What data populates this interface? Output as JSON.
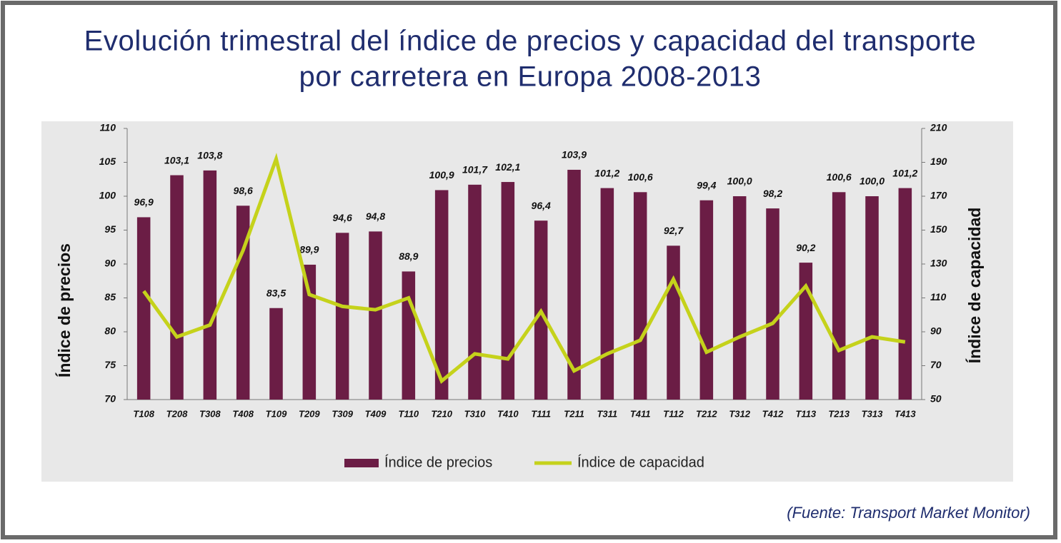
{
  "chart_data": {
    "type": "bar",
    "title": [
      "Evolución trimestral del índice de precios y capacidad del transporte",
      "por carretera en Europa 2008-2013"
    ],
    "source": "(Fuente: Transport Market Monitor)",
    "ylabel": "Índice de precios",
    "y2label": "Índice de capacidad",
    "categories": [
      "T108",
      "T208",
      "T308",
      "T408",
      "T109",
      "T209",
      "T309",
      "T409",
      "T110",
      "T210",
      "T310",
      "T410",
      "T111",
      "T211",
      "T311",
      "T411",
      "T112",
      "T212",
      "T312",
      "T412",
      "T113",
      "T213",
      "T313",
      "T413"
    ],
    "series": [
      {
        "name": "Índice de precios",
        "type": "bar",
        "color": "#6b1d45",
        "values": [
          96.9,
          103.1,
          103.8,
          98.6,
          83.5,
          89.9,
          94.6,
          94.8,
          88.9,
          100.9,
          101.7,
          102.1,
          96.4,
          103.9,
          101.2,
          100.6,
          92.7,
          99.4,
          100.0,
          98.2,
          90.2,
          100.6,
          100.0,
          101.2
        ],
        "value_labels": [
          "96,9",
          "103,1",
          "103,8",
          "98,6",
          "83,5",
          "89,9",
          "94,6",
          "94,8",
          "88,9",
          "100,9",
          "101,7",
          "102,1",
          "96,4",
          "103,9",
          "101,2",
          "100,6",
          "92,7",
          "99,4",
          "100,0",
          "98,2",
          "90,2",
          "100,6",
          "100,0",
          "101,2"
        ]
      },
      {
        "name": "Índice de capacidad",
        "type": "line",
        "axis": "y2",
        "color": "#c5d21b",
        "values": [
          114,
          87,
          94,
          138,
          192,
          112,
          105,
          103,
          110,
          61,
          77,
          74,
          102,
          67,
          77,
          85,
          121,
          78,
          87,
          95,
          117,
          79,
          87,
          84
        ]
      }
    ],
    "ylim": [
      70,
      110
    ],
    "yticks": [
      70,
      75,
      80,
      85,
      90,
      95,
      100,
      105,
      110
    ],
    "y2lim": [
      50,
      210
    ],
    "y2ticks": [
      50,
      70,
      90,
      110,
      130,
      150,
      170,
      190,
      210
    ],
    "grid": false
  }
}
